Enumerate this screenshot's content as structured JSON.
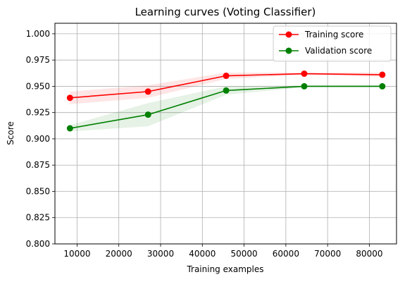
{
  "chart_data": {
    "type": "line",
    "title": "Learning curves (Voting Classifier)",
    "xlabel": "Training examples",
    "ylabel": "Score",
    "xlim": [
      4700,
      86500
    ],
    "ylim": [
      0.8,
      1.01
    ],
    "xticks": [
      10000,
      20000,
      30000,
      40000,
      50000,
      60000,
      70000,
      80000
    ],
    "xtick_labels": [
      "10000",
      "20000",
      "30000",
      "40000",
      "50000",
      "60000",
      "70000",
      "80000"
    ],
    "yticks": [
      0.8,
      0.825,
      0.85,
      0.875,
      0.9,
      0.925,
      0.95,
      0.975,
      1.0
    ],
    "ytick_labels": [
      "0.800",
      "0.825",
      "0.850",
      "0.875",
      "0.900",
      "0.925",
      "0.950",
      "0.975",
      "1.000"
    ],
    "grid": true,
    "legend_position": "top-right",
    "x": [
      8300,
      27000,
      45700,
      64400,
      83100
    ],
    "series": [
      {
        "name": "Training score",
        "color": "#ff0000",
        "values": [
          0.939,
          0.945,
          0.96,
          0.962,
          0.961
        ],
        "band_lower": [
          0.933,
          0.939,
          0.957,
          0.961,
          0.959
        ],
        "band_upper": [
          0.945,
          0.951,
          0.963,
          0.963,
          0.963
        ]
      },
      {
        "name": "Validation score",
        "color": "#008000",
        "values": [
          0.91,
          0.923,
          0.946,
          0.95,
          0.95
        ],
        "band_lower": [
          0.907,
          0.912,
          0.942,
          0.949,
          0.949
        ],
        "band_upper": [
          0.913,
          0.934,
          0.95,
          0.951,
          0.951
        ]
      }
    ]
  }
}
